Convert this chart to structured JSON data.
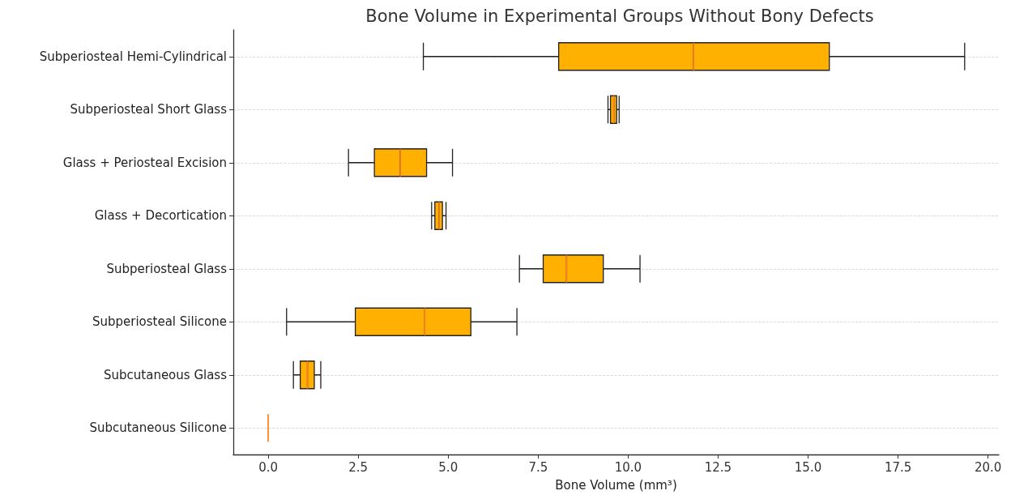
{
  "chart_data": {
    "type": "box",
    "orientation": "horizontal",
    "title": "Bone Volume in Experimental Groups Without Bony Defects",
    "xlabel": "Bone Volume (mm³)",
    "categories": [
      "Subperiosteal Hemi-Cylindrical",
      "Subperiosteal Short Glass",
      "Glass + Periosteal Excision",
      "Glass + Decortication",
      "Subperiosteal Glass",
      "Subperiosteal Silicone",
      "Subcutaneous Glass",
      "Subcutaneous Silicone"
    ],
    "boxes": [
      {
        "low": 4.31,
        "q1": 8.07,
        "median": 11.82,
        "q3": 15.59,
        "high": 19.35
      },
      {
        "low": 9.44,
        "q1": 9.51,
        "median": 9.6,
        "q3": 9.68,
        "high": 9.75
      },
      {
        "low": 2.23,
        "q1": 2.95,
        "median": 3.67,
        "q3": 4.4,
        "high": 5.12
      },
      {
        "low": 4.54,
        "q1": 4.63,
        "median": 4.75,
        "q3": 4.84,
        "high": 4.94
      },
      {
        "low": 6.98,
        "q1": 7.64,
        "median": 8.29,
        "q3": 9.31,
        "high": 10.33
      },
      {
        "low": 0.51,
        "q1": 2.42,
        "median": 4.35,
        "q3": 5.63,
        "high": 6.91
      },
      {
        "low": 0.7,
        "q1": 0.89,
        "median": 1.09,
        "q3": 1.28,
        "high": 1.46
      },
      {
        "low": 0,
        "q1": 0,
        "median": 0,
        "q3": 0,
        "high": 0
      }
    ],
    "color": "#ffb000",
    "xlim": [
      -0.97,
      20.3
    ],
    "xticks": [
      {
        "value": 0,
        "label": "0.0"
      },
      2.5,
      {
        "value": 5,
        "label": "5.0"
      },
      7.5,
      {
        "value": 10,
        "label": "10.0"
      },
      12.5,
      {
        "value": 15,
        "label": "15.0"
      },
      17.5,
      {
        "value": 20,
        "label": "20.0"
      }
    ],
    "grid": "y"
  }
}
